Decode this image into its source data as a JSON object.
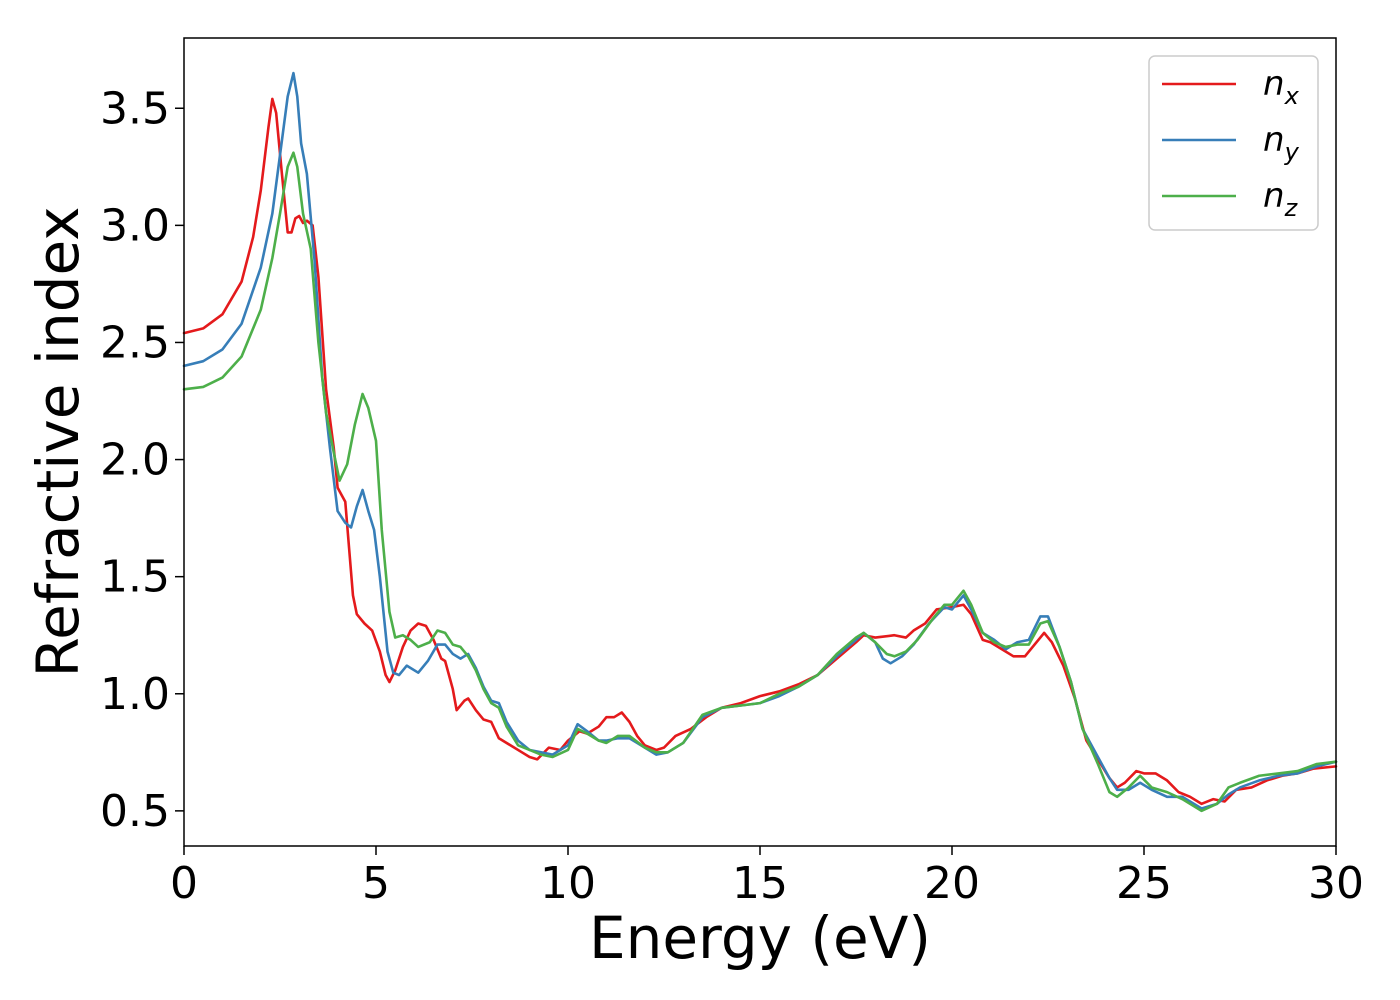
{
  "chart_data": {
    "type": "line",
    "title": "",
    "xlabel": "Energy (eV)",
    "ylabel": "Refractive index",
    "xlim": [
      0,
      30
    ],
    "ylim": [
      0.35,
      3.8
    ],
    "xticks": [
      0,
      5,
      10,
      15,
      20,
      25,
      30
    ],
    "yticks": [
      0.5,
      1.0,
      1.5,
      2.0,
      2.5,
      3.0,
      3.5
    ],
    "grid": false,
    "legend_position": "top-right",
    "series": [
      {
        "name": "n",
        "subscript": "x",
        "color": "#e41a1c",
        "points": [
          [
            0,
            2.54
          ],
          [
            0.5,
            2.56
          ],
          [
            1.0,
            2.62
          ],
          [
            1.5,
            2.76
          ],
          [
            1.8,
            2.95
          ],
          [
            2.0,
            3.15
          ],
          [
            2.2,
            3.42
          ],
          [
            2.3,
            3.54
          ],
          [
            2.4,
            3.48
          ],
          [
            2.55,
            3.22
          ],
          [
            2.7,
            2.97
          ],
          [
            2.8,
            2.97
          ],
          [
            2.9,
            3.03
          ],
          [
            3.0,
            3.04
          ],
          [
            3.1,
            3.01
          ],
          [
            3.2,
            3.02
          ],
          [
            3.35,
            3.0
          ],
          [
            3.5,
            2.78
          ],
          [
            3.7,
            2.3
          ],
          [
            3.9,
            2.05
          ],
          [
            4.0,
            1.88
          ],
          [
            4.1,
            1.85
          ],
          [
            4.2,
            1.82
          ],
          [
            4.3,
            1.62
          ],
          [
            4.4,
            1.42
          ],
          [
            4.5,
            1.34
          ],
          [
            4.7,
            1.3
          ],
          [
            4.9,
            1.27
          ],
          [
            5.1,
            1.18
          ],
          [
            5.25,
            1.08
          ],
          [
            5.35,
            1.05
          ],
          [
            5.5,
            1.1
          ],
          [
            5.7,
            1.2
          ],
          [
            5.9,
            1.27
          ],
          [
            6.1,
            1.3
          ],
          [
            6.3,
            1.29
          ],
          [
            6.5,
            1.23
          ],
          [
            6.7,
            1.15
          ],
          [
            6.8,
            1.14
          ],
          [
            7.0,
            1.02
          ],
          [
            7.1,
            0.93
          ],
          [
            7.3,
            0.97
          ],
          [
            7.4,
            0.98
          ],
          [
            7.6,
            0.93
          ],
          [
            7.8,
            0.89
          ],
          [
            8.0,
            0.88
          ],
          [
            8.2,
            0.81
          ],
          [
            8.5,
            0.78
          ],
          [
            8.8,
            0.75
          ],
          [
            9.0,
            0.73
          ],
          [
            9.2,
            0.72
          ],
          [
            9.5,
            0.77
          ],
          [
            9.8,
            0.76
          ],
          [
            10.0,
            0.8
          ],
          [
            10.3,
            0.84
          ],
          [
            10.5,
            0.83
          ],
          [
            10.8,
            0.86
          ],
          [
            11.0,
            0.9
          ],
          [
            11.2,
            0.9
          ],
          [
            11.4,
            0.92
          ],
          [
            11.6,
            0.88
          ],
          [
            11.8,
            0.82
          ],
          [
            12.0,
            0.78
          ],
          [
            12.3,
            0.76
          ],
          [
            12.5,
            0.77
          ],
          [
            12.8,
            0.82
          ],
          [
            13.2,
            0.85
          ],
          [
            13.6,
            0.9
          ],
          [
            14.0,
            0.94
          ],
          [
            14.5,
            0.96
          ],
          [
            15.0,
            0.99
          ],
          [
            15.5,
            1.01
          ],
          [
            16.0,
            1.04
          ],
          [
            16.5,
            1.08
          ],
          [
            17.0,
            1.15
          ],
          [
            17.5,
            1.22
          ],
          [
            17.7,
            1.25
          ],
          [
            18.0,
            1.24
          ],
          [
            18.5,
            1.25
          ],
          [
            18.8,
            1.24
          ],
          [
            19.0,
            1.27
          ],
          [
            19.3,
            1.3
          ],
          [
            19.6,
            1.36
          ],
          [
            20.0,
            1.37
          ],
          [
            20.3,
            1.38
          ],
          [
            20.5,
            1.34
          ],
          [
            20.8,
            1.23
          ],
          [
            21.0,
            1.22
          ],
          [
            21.3,
            1.19
          ],
          [
            21.6,
            1.16
          ],
          [
            21.9,
            1.16
          ],
          [
            22.1,
            1.2
          ],
          [
            22.4,
            1.26
          ],
          [
            22.6,
            1.22
          ],
          [
            22.9,
            1.12
          ],
          [
            23.2,
            0.98
          ],
          [
            23.5,
            0.8
          ],
          [
            23.8,
            0.72
          ],
          [
            24.1,
            0.64
          ],
          [
            24.3,
            0.6
          ],
          [
            24.5,
            0.62
          ],
          [
            24.8,
            0.67
          ],
          [
            25.0,
            0.66
          ],
          [
            25.3,
            0.66
          ],
          [
            25.6,
            0.63
          ],
          [
            25.9,
            0.58
          ],
          [
            26.2,
            0.56
          ],
          [
            26.5,
            0.53
          ],
          [
            26.8,
            0.55
          ],
          [
            27.1,
            0.54
          ],
          [
            27.4,
            0.59
          ],
          [
            27.8,
            0.6
          ],
          [
            28.2,
            0.63
          ],
          [
            28.6,
            0.65
          ],
          [
            29.0,
            0.66
          ],
          [
            29.4,
            0.68
          ],
          [
            30,
            0.69
          ]
        ]
      },
      {
        "name": "n",
        "subscript": "y",
        "color": "#377eb8",
        "points": [
          [
            0,
            2.4
          ],
          [
            0.5,
            2.42
          ],
          [
            1.0,
            2.47
          ],
          [
            1.5,
            2.58
          ],
          [
            2.0,
            2.82
          ],
          [
            2.3,
            3.05
          ],
          [
            2.5,
            3.3
          ],
          [
            2.7,
            3.55
          ],
          [
            2.85,
            3.65
          ],
          [
            2.95,
            3.55
          ],
          [
            3.05,
            3.35
          ],
          [
            3.2,
            3.22
          ],
          [
            3.4,
            2.85
          ],
          [
            3.6,
            2.35
          ],
          [
            3.8,
            2.05
          ],
          [
            4.0,
            1.78
          ],
          [
            4.2,
            1.73
          ],
          [
            4.35,
            1.71
          ],
          [
            4.5,
            1.8
          ],
          [
            4.65,
            1.87
          ],
          [
            4.8,
            1.78
          ],
          [
            4.95,
            1.7
          ],
          [
            5.1,
            1.5
          ],
          [
            5.3,
            1.18
          ],
          [
            5.45,
            1.09
          ],
          [
            5.6,
            1.08
          ],
          [
            5.8,
            1.12
          ],
          [
            6.1,
            1.09
          ],
          [
            6.35,
            1.14
          ],
          [
            6.6,
            1.21
          ],
          [
            6.8,
            1.21
          ],
          [
            7.0,
            1.17
          ],
          [
            7.2,
            1.15
          ],
          [
            7.4,
            1.17
          ],
          [
            7.6,
            1.11
          ],
          [
            7.8,
            1.03
          ],
          [
            8.0,
            0.97
          ],
          [
            8.2,
            0.96
          ],
          [
            8.4,
            0.88
          ],
          [
            8.7,
            0.8
          ],
          [
            9.0,
            0.76
          ],
          [
            9.3,
            0.75
          ],
          [
            9.6,
            0.74
          ],
          [
            10.0,
            0.78
          ],
          [
            10.25,
            0.87
          ],
          [
            10.5,
            0.84
          ],
          [
            10.8,
            0.8
          ],
          [
            11.0,
            0.8
          ],
          [
            11.3,
            0.81
          ],
          [
            11.6,
            0.81
          ],
          [
            12.0,
            0.77
          ],
          [
            12.3,
            0.74
          ],
          [
            12.6,
            0.75
          ],
          [
            13.0,
            0.79
          ],
          [
            13.5,
            0.9
          ],
          [
            14.0,
            0.94
          ],
          [
            14.5,
            0.95
          ],
          [
            15.0,
            0.96
          ],
          [
            15.5,
            0.99
          ],
          [
            16.0,
            1.03
          ],
          [
            16.5,
            1.08
          ],
          [
            17.0,
            1.16
          ],
          [
            17.5,
            1.23
          ],
          [
            17.7,
            1.26
          ],
          [
            18.0,
            1.22
          ],
          [
            18.2,
            1.15
          ],
          [
            18.4,
            1.13
          ],
          [
            18.7,
            1.16
          ],
          [
            19.0,
            1.21
          ],
          [
            19.4,
            1.3
          ],
          [
            19.8,
            1.37
          ],
          [
            20.0,
            1.36
          ],
          [
            20.3,
            1.42
          ],
          [
            20.5,
            1.36
          ],
          [
            20.8,
            1.26
          ],
          [
            21.1,
            1.23
          ],
          [
            21.4,
            1.19
          ],
          [
            21.7,
            1.22
          ],
          [
            22.0,
            1.23
          ],
          [
            22.3,
            1.33
          ],
          [
            22.5,
            1.33
          ],
          [
            22.8,
            1.2
          ],
          [
            23.1,
            1.05
          ],
          [
            23.4,
            0.85
          ],
          [
            23.8,
            0.73
          ],
          [
            24.1,
            0.64
          ],
          [
            24.3,
            0.59
          ],
          [
            24.6,
            0.59
          ],
          [
            24.9,
            0.62
          ],
          [
            25.2,
            0.59
          ],
          [
            25.6,
            0.56
          ],
          [
            26.0,
            0.56
          ],
          [
            26.5,
            0.51
          ],
          [
            26.9,
            0.53
          ],
          [
            27.2,
            0.57
          ],
          [
            27.5,
            0.6
          ],
          [
            28.0,
            0.63
          ],
          [
            28.5,
            0.65
          ],
          [
            29.0,
            0.66
          ],
          [
            29.5,
            0.69
          ],
          [
            30,
            0.71
          ]
        ]
      },
      {
        "name": "n",
        "subscript": "z",
        "color": "#4daf4a",
        "points": [
          [
            0,
            2.3
          ],
          [
            0.5,
            2.31
          ],
          [
            1.0,
            2.35
          ],
          [
            1.5,
            2.44
          ],
          [
            2.0,
            2.64
          ],
          [
            2.3,
            2.86
          ],
          [
            2.5,
            3.05
          ],
          [
            2.7,
            3.25
          ],
          [
            2.85,
            3.31
          ],
          [
            2.95,
            3.25
          ],
          [
            3.1,
            3.05
          ],
          [
            3.3,
            2.9
          ],
          [
            3.5,
            2.5
          ],
          [
            3.7,
            2.2
          ],
          [
            3.9,
            2.03
          ],
          [
            4.05,
            1.91
          ],
          [
            4.25,
            1.98
          ],
          [
            4.45,
            2.15
          ],
          [
            4.65,
            2.28
          ],
          [
            4.8,
            2.22
          ],
          [
            5.0,
            2.08
          ],
          [
            5.15,
            1.7
          ],
          [
            5.35,
            1.35
          ],
          [
            5.5,
            1.24
          ],
          [
            5.7,
            1.25
          ],
          [
            5.9,
            1.23
          ],
          [
            6.1,
            1.2
          ],
          [
            6.4,
            1.22
          ],
          [
            6.6,
            1.27
          ],
          [
            6.8,
            1.26
          ],
          [
            7.0,
            1.21
          ],
          [
            7.2,
            1.2
          ],
          [
            7.4,
            1.16
          ],
          [
            7.6,
            1.1
          ],
          [
            7.8,
            1.02
          ],
          [
            8.0,
            0.96
          ],
          [
            8.2,
            0.94
          ],
          [
            8.4,
            0.86
          ],
          [
            8.7,
            0.78
          ],
          [
            9.0,
            0.76
          ],
          [
            9.3,
            0.74
          ],
          [
            9.6,
            0.73
          ],
          [
            10.0,
            0.76
          ],
          [
            10.25,
            0.85
          ],
          [
            10.5,
            0.83
          ],
          [
            10.8,
            0.8
          ],
          [
            11.0,
            0.79
          ],
          [
            11.3,
            0.82
          ],
          [
            11.6,
            0.82
          ],
          [
            12.0,
            0.77
          ],
          [
            12.3,
            0.75
          ],
          [
            12.6,
            0.75
          ],
          [
            13.0,
            0.79
          ],
          [
            13.5,
            0.91
          ],
          [
            14.0,
            0.94
          ],
          [
            14.5,
            0.95
          ],
          [
            15.0,
            0.96
          ],
          [
            15.5,
            1.0
          ],
          [
            16.0,
            1.03
          ],
          [
            16.5,
            1.08
          ],
          [
            17.0,
            1.17
          ],
          [
            17.5,
            1.24
          ],
          [
            17.7,
            1.26
          ],
          [
            18.0,
            1.22
          ],
          [
            18.3,
            1.17
          ],
          [
            18.5,
            1.16
          ],
          [
            18.8,
            1.18
          ],
          [
            19.1,
            1.23
          ],
          [
            19.5,
            1.32
          ],
          [
            19.8,
            1.38
          ],
          [
            20.0,
            1.38
          ],
          [
            20.3,
            1.44
          ],
          [
            20.5,
            1.38
          ],
          [
            20.8,
            1.26
          ],
          [
            21.1,
            1.22
          ],
          [
            21.4,
            1.2
          ],
          [
            21.7,
            1.21
          ],
          [
            22.0,
            1.21
          ],
          [
            22.3,
            1.3
          ],
          [
            22.5,
            1.31
          ],
          [
            22.8,
            1.2
          ],
          [
            23.1,
            1.05
          ],
          [
            23.4,
            0.85
          ],
          [
            23.8,
            0.7
          ],
          [
            24.1,
            0.58
          ],
          [
            24.3,
            0.56
          ],
          [
            24.6,
            0.6
          ],
          [
            24.9,
            0.65
          ],
          [
            25.2,
            0.6
          ],
          [
            25.6,
            0.58
          ],
          [
            26.0,
            0.55
          ],
          [
            26.5,
            0.5
          ],
          [
            26.9,
            0.53
          ],
          [
            27.2,
            0.6
          ],
          [
            27.5,
            0.62
          ],
          [
            28.0,
            0.65
          ],
          [
            28.5,
            0.66
          ],
          [
            29.0,
            0.67
          ],
          [
            29.5,
            0.7
          ],
          [
            30,
            0.71
          ]
        ]
      }
    ]
  }
}
